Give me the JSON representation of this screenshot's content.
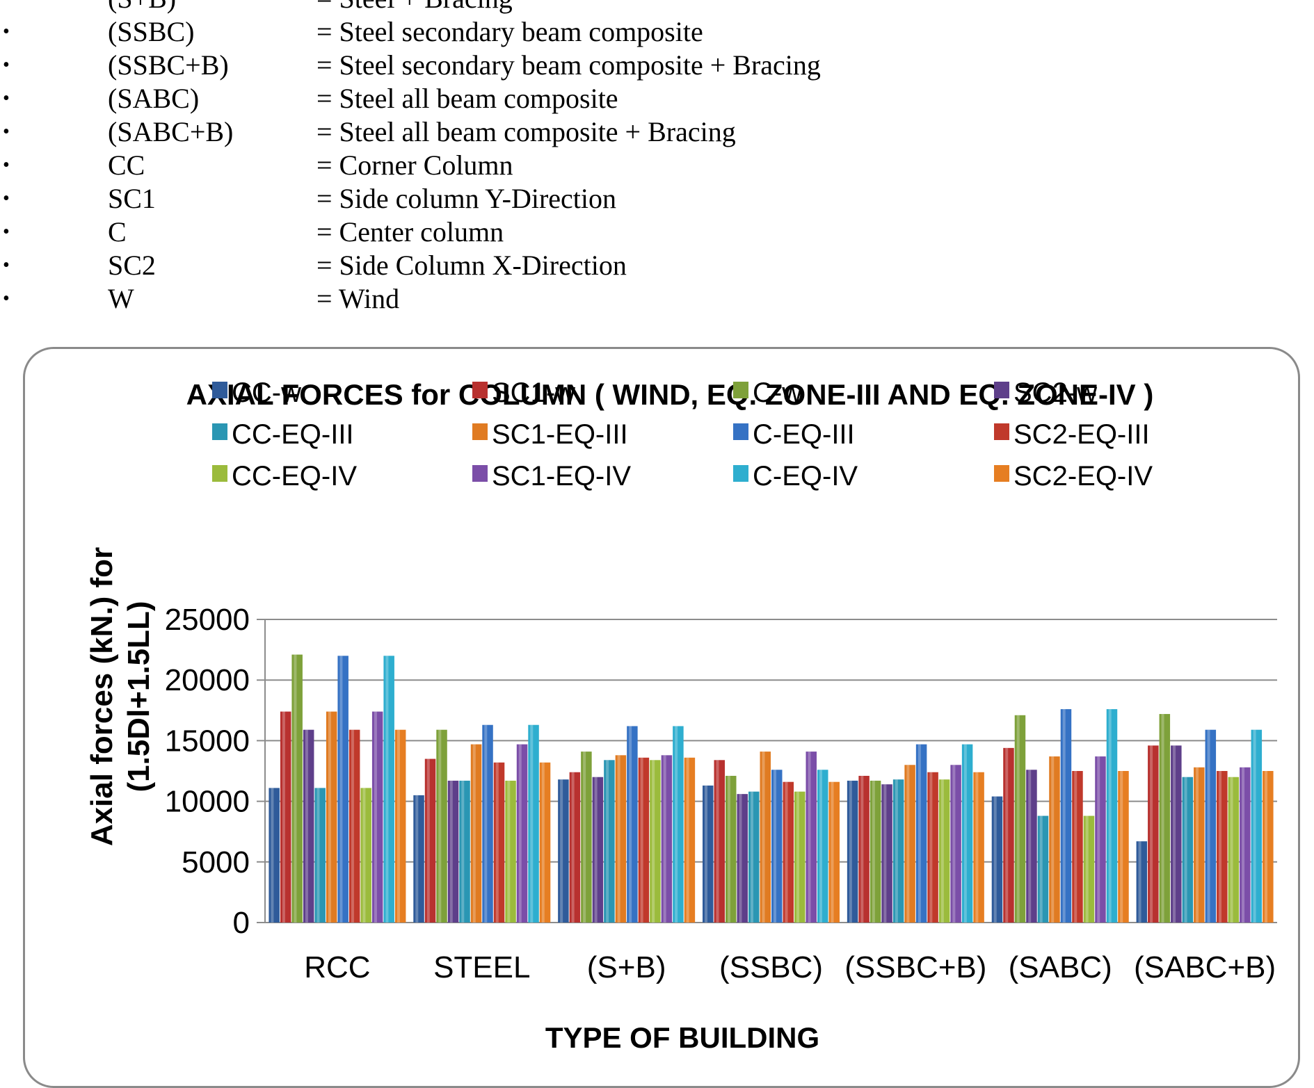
{
  "abbreviations": [
    {
      "code": "(S+B)",
      "desc": "= Steel + Bracing"
    },
    {
      "code": "(SSBC)",
      "desc": "= Steel secondary beam composite"
    },
    {
      "code": "(SSBC+B)",
      "desc": "= Steel secondary beam composite + Bracing"
    },
    {
      "code": "(SABC)",
      "desc": "= Steel all beam composite"
    },
    {
      "code": "(SABC+B)",
      "desc": "= Steel all beam composite + Bracing"
    },
    {
      "code": "CC",
      "desc": "= Corner Column"
    },
    {
      "code": "SC1",
      "desc": "= Side column Y-Direction"
    },
    {
      "code": "C",
      "desc": "= Center column"
    },
    {
      "code": "SC2",
      "desc": "= Side Column X-Direction"
    },
    {
      "code": "W",
      "desc": "= Wind"
    }
  ],
  "bullet": "•",
  "chart_data": {
    "type": "bar",
    "title": "AXIAL FORCES  for COLUMN ( WIND, EQ. ZONE-III AND EQ. ZONE-IV )",
    "xlabel": "TYPE OF BUILDING",
    "ylabel_lines": [
      "Axial forces (kN.) for",
      "(1.5Dl+1.5LL)"
    ],
    "ylim": [
      0,
      25000
    ],
    "yticks": [
      0,
      5000,
      10000,
      15000,
      20000,
      25000
    ],
    "grid": true,
    "legend_position": "top",
    "categories": [
      "RCC",
      "STEEL",
      "(S+B)",
      "(SSBC)",
      "(SSBC+B)",
      "(SABC)",
      "(SABC+B)"
    ],
    "series": [
      {
        "name": "CC-w",
        "color": "#2f5b9a",
        "values": [
          11100,
          10500,
          11800,
          11300,
          11700,
          10400,
          6700
        ]
      },
      {
        "name": "SC1-w",
        "color": "#b8312f",
        "values": [
          17400,
          13500,
          12400,
          13400,
          12100,
          14400,
          14600
        ]
      },
      {
        "name": "C-w",
        "color": "#7ea13a",
        "values": [
          22100,
          15900,
          14100,
          12100,
          11700,
          17100,
          17200
        ]
      },
      {
        "name": "SC2-w",
        "color": "#5e3f8a",
        "values": [
          15900,
          11700,
          12000,
          10600,
          11400,
          12600,
          14600
        ]
      },
      {
        "name": "CC-EQ-III",
        "color": "#2a96b3",
        "values": [
          11100,
          11700,
          13400,
          10800,
          11800,
          8800,
          12000
        ]
      },
      {
        "name": "SC1-EQ-III",
        "color": "#e07b22",
        "values": [
          17400,
          14700,
          13800,
          14100,
          13000,
          13700,
          12800
        ]
      },
      {
        "name": "C-EQ-III",
        "color": "#3572c4",
        "values": [
          22000,
          16300,
          16200,
          12600,
          14700,
          17600,
          15900
        ]
      },
      {
        "name": "SC2-EQ-III",
        "color": "#c0392b",
        "values": [
          15900,
          13200,
          13600,
          11600,
          12400,
          12500,
          12500
        ]
      },
      {
        "name": "CC-EQ-IV",
        "color": "#9bbb3c",
        "values": [
          11100,
          11700,
          13400,
          10800,
          11800,
          8800,
          12000
        ]
      },
      {
        "name": "SC1-EQ-IV",
        "color": "#7b4ea8",
        "values": [
          17400,
          14700,
          13800,
          14100,
          13000,
          13700,
          12800
        ]
      },
      {
        "name": "C-EQ-IV",
        "color": "#2eaecf",
        "values": [
          22000,
          16300,
          16200,
          12600,
          14700,
          17600,
          15900
        ]
      },
      {
        "name": "SC2-EQ-IV",
        "color": "#e67e22",
        "values": [
          15900,
          13200,
          13600,
          11600,
          12400,
          12500,
          12500
        ]
      }
    ]
  }
}
